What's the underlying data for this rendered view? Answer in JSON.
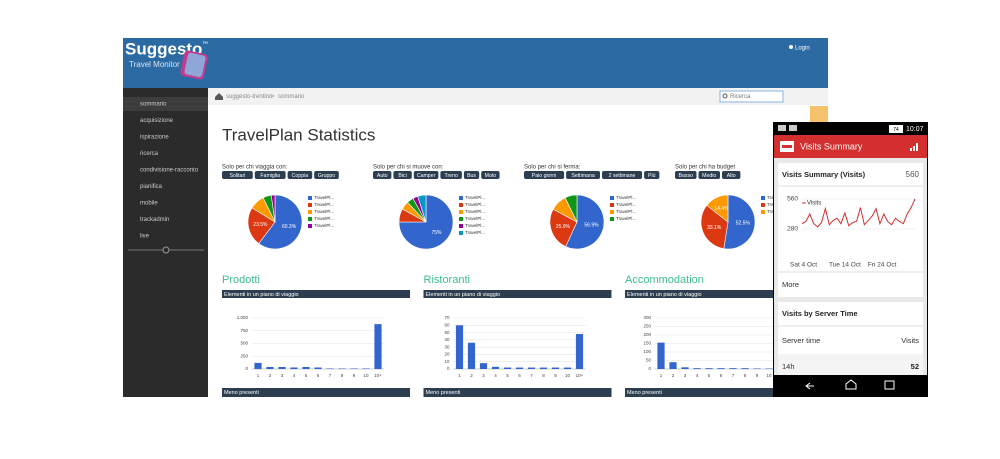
{
  "header": {
    "logo": "Suggesto",
    "tm": "™",
    "subtitle": "Travel Monitor",
    "login": "Login"
  },
  "sidebar": {
    "items": [
      "sommario",
      "acquisizione",
      "ispirazione",
      "ricerca",
      "condivisione-racconto",
      "pianifica",
      "mobile",
      "trackadmin",
      "live"
    ],
    "active": 0
  },
  "breadcrumb": {
    "items": [
      "suggesto-trentino",
      "sommario"
    ],
    "separator": ">",
    "search": "Ricerca"
  },
  "title": "TravelPlan Statistics",
  "pies": [
    {
      "type": "pie",
      "label": "Solo per chi viaggia con:",
      "filters": [
        "Solitari",
        "Famiglia",
        "Coppia",
        "Gruppo"
      ],
      "legend": [
        "TravelPl...",
        "TravelPl...",
        "TravelPl...",
        "TravelPl...",
        "TravelPl..."
      ],
      "values": [
        60.3,
        23.5,
        9,
        5,
        2.2
      ],
      "value_labels": [
        "60.3%",
        "23.5%",
        null,
        null,
        null
      ],
      "colors": [
        "#3366cc",
        "#dc3912",
        "#ff9900",
        "#109618",
        "#990099"
      ]
    },
    {
      "type": "pie",
      "label": "Solo per chi si muove con:",
      "filters": [
        "Auto",
        "Bici",
        "Camper",
        "Treno",
        "Bus",
        "Moto"
      ],
      "legend": [
        "TravelPl...",
        "TravelPl...",
        "TravelPl...",
        "TravelPl...",
        "TravelPl...",
        "TravelPl..."
      ],
      "values": [
        75,
        8,
        5,
        4,
        3,
        5
      ],
      "value_labels": [
        "75%",
        null,
        null,
        null,
        null,
        null
      ],
      "colors": [
        "#3366cc",
        "#dc3912",
        "#ff9900",
        "#109618",
        "#990099",
        "#0099c6"
      ]
    },
    {
      "type": "pie",
      "label": "Solo per chi si ferma:",
      "filters": [
        "Paio giorni",
        "Settimana",
        "2 settimane",
        "Più"
      ],
      "legend": [
        "TravelPl...",
        "TravelPl...",
        "TravelPl...",
        "TravelPl..."
      ],
      "values": [
        56.9,
        25.9,
        10,
        7.2
      ],
      "value_labels": [
        "56.9%",
        "25.9%",
        null,
        null
      ],
      "colors": [
        "#3366cc",
        "#dc3912",
        "#ff9900",
        "#109618"
      ]
    },
    {
      "type": "pie",
      "label": "Solo per chi ha budget",
      "filters": [
        "Basso",
        "Medio",
        "Alto"
      ],
      "legend": [
        "TravelPl...",
        "TravelPl...",
        "TravelPl..."
      ],
      "values": [
        52.5,
        33.1,
        14.4
      ],
      "value_labels": [
        "52.5%",
        "33.1%",
        "14.4%"
      ],
      "colors": [
        "#3366cc",
        "#dc3912",
        "#ff9900"
      ]
    }
  ],
  "bars": [
    {
      "type": "bar",
      "title": "Prodotti",
      "header": "Elementi in un piano di viaggio",
      "footer": "Meno presenti",
      "categories": [
        "1",
        "2",
        "3",
        "4",
        "5",
        "6",
        "7",
        "8",
        "9",
        "10",
        "10+"
      ],
      "values": [
        120,
        40,
        40,
        30,
        40,
        30,
        10,
        10,
        10,
        10,
        880
      ],
      "ylim": [
        0,
        1000
      ],
      "yticks": [
        0,
        250,
        500,
        750,
        {
          "value": 1000,
          "label": "1.000"
        }
      ],
      "color": "#3366cc"
    },
    {
      "type": "bar",
      "title": "Ristoranti",
      "header": "Elementi in un piano di viaggio",
      "footer": "Meno presenti",
      "categories": [
        "1",
        "2",
        "3",
        "4",
        "5",
        "6",
        "7",
        "8",
        "9",
        "10",
        "10+"
      ],
      "values": [
        60,
        36,
        8,
        3,
        2,
        2,
        2,
        2,
        2,
        2,
        48
      ],
      "ylim": [
        0,
        70
      ],
      "yticks": [
        0,
        10,
        20,
        30,
        40,
        50,
        60,
        70
      ],
      "color": "#3366cc"
    },
    {
      "type": "bar",
      "title": "Accommodation",
      "header": "Elementi in un piano di viaggio",
      "footer": "Meno presenti",
      "categories": [
        "1",
        "2",
        "3",
        "4",
        "5",
        "6",
        "7",
        "8",
        "9",
        "10",
        "10+"
      ],
      "values": [
        155,
        40,
        10,
        5,
        5,
        5,
        5,
        5,
        3,
        3,
        3
      ],
      "ylim": [
        0,
        300
      ],
      "yticks": [
        0,
        50,
        100,
        150,
        200,
        250,
        300
      ],
      "color": "#3366cc"
    }
  ],
  "phone": {
    "time": "10:07",
    "battery": "74",
    "app_title": "Visits Summary",
    "card_title": "Visits Summary (Visits)",
    "card_value": "560",
    "chart": {
      "type": "line",
      "series": [
        {
          "name": "Visits",
          "color": "#d32f2f",
          "values": [
            330,
            350,
            420,
            330,
            300,
            340,
            470,
            320,
            360,
            380,
            330,
            430,
            310,
            340,
            350,
            480,
            320,
            360,
            400,
            470,
            330,
            420,
            350,
            320,
            380,
            350,
            330,
            420,
            480,
            560
          ]
        }
      ],
      "x": [
        0,
        1,
        2,
        3,
        4,
        5,
        6,
        7,
        8,
        9,
        10,
        11,
        12,
        13,
        14,
        15,
        16,
        17,
        18,
        19,
        20,
        21,
        22,
        23,
        24,
        25,
        26,
        27,
        28,
        29
      ],
      "xlim": [
        0,
        29
      ],
      "xticks": [
        {
          "value": 0,
          "label": "Sat 4 Oct"
        },
        {
          "value": 10,
          "label": "Tue 14 Oct"
        },
        {
          "value": 20,
          "label": "Fri 24 Oct"
        }
      ],
      "ylim": [
        0,
        560
      ],
      "yticks": [
        280,
        560
      ]
    },
    "more": "More",
    "section_title": "Visits by Server Time",
    "columns": [
      "Server time",
      "Visits"
    ],
    "row": [
      "14h",
      "52"
    ]
  }
}
